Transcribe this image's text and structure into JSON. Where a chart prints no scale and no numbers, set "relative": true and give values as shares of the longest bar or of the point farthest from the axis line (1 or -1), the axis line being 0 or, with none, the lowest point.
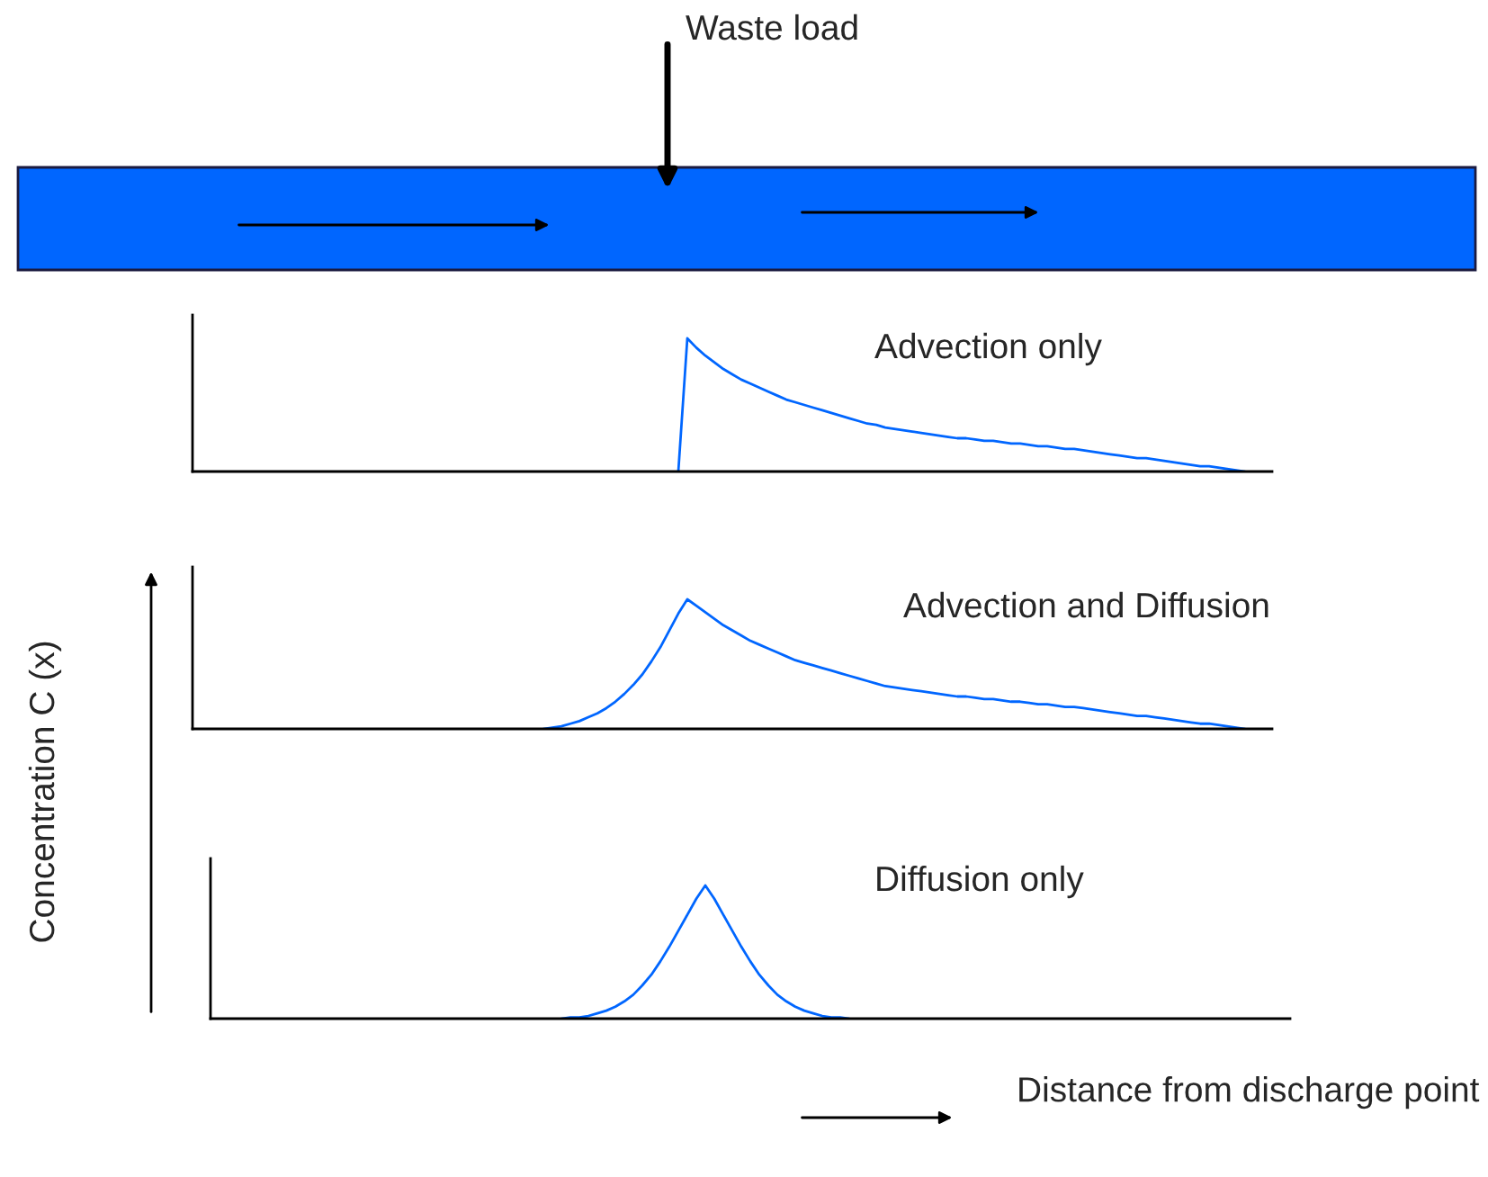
{
  "chart_data": [
    {
      "type": "line",
      "title": "Advection only",
      "relative": true,
      "annotations": [
        "Waste load"
      ],
      "categories": [
        null,
        null,
        null,
        null,
        null,
        null,
        null,
        null,
        null,
        null,
        null,
        null,
        null,
        null,
        null,
        null,
        null,
        null,
        null,
        null,
        null,
        null,
        null,
        null,
        null,
        null,
        null,
        null,
        null,
        null,
        null,
        null,
        null,
        null,
        null,
        null,
        null,
        null,
        null,
        null,
        null,
        null,
        null,
        null,
        null,
        null,
        null,
        null,
        null,
        null,
        null,
        null,
        null,
        null,
        null,
        null,
        null,
        null,
        null,
        null,
        null,
        null,
        null,
        null,
        null,
        null,
        null,
        null,
        null,
        null,
        null,
        null,
        null,
        null,
        null,
        null,
        null,
        null,
        null,
        null,
        null,
        null,
        null,
        null,
        null,
        null,
        null,
        null,
        null,
        null,
        null,
        null,
        null,
        null,
        null,
        null,
        null,
        null,
        null,
        null,
        null,
        null,
        null,
        null,
        null,
        null,
        null,
        null,
        null,
        null,
        null,
        null,
        null,
        null,
        null,
        null,
        null,
        null,
        null,
        null,
        null
      ],
      "series": [
        {
          "color": "#0066ff",
          "values": [
            null,
            null,
            null,
            null,
            null,
            null,
            null,
            null,
            null,
            null,
            null,
            null,
            null,
            null,
            null,
            null,
            null,
            null,
            null,
            null,
            null,
            null,
            null,
            null,
            null,
            null,
            null,
            null,
            null,
            null,
            null,
            null,
            null,
            null,
            null,
            null,
            null,
            null,
            null,
            null,
            null,
            null,
            null,
            null,
            null,
            null,
            null,
            null,
            null,
            null,
            null,
            null,
            null,
            null,
            0,
            1.0,
            0.93,
            0.87,
            0.82,
            0.77,
            0.73,
            0.69,
            0.66,
            0.63,
            0.6,
            0.57,
            0.54,
            0.52,
            0.5,
            0.48,
            0.46,
            0.44,
            0.42,
            0.4,
            0.38,
            0.36,
            0.35,
            0.33,
            0.32,
            0.31,
            0.3,
            0.29,
            0.28,
            0.27,
            0.26,
            0.25,
            0.25,
            0.24,
            0.23,
            0.23,
            0.22,
            0.21,
            0.21,
            0.2,
            0.19,
            0.19,
            0.18,
            0.17,
            0.17,
            0.16,
            0.15,
            0.14,
            0.13,
            0.12,
            0.11,
            0.1,
            0.1,
            0.09,
            0.08,
            0.07,
            0.06,
            0.05,
            0.04,
            0.04,
            0.03,
            0.02,
            0.01,
            0,
            null,
            null,
            null
          ]
        }
      ]
    },
    {
      "type": "line",
      "title": "Advection and Diffusion",
      "relative": true,
      "categories": [
        null,
        null,
        null,
        null,
        null,
        null,
        null,
        null,
        null,
        null,
        null,
        null,
        null,
        null,
        null,
        null,
        null,
        null,
        null,
        null,
        null,
        null,
        null,
        null,
        null,
        null,
        null,
        null,
        null,
        null,
        null,
        null,
        null,
        null,
        null,
        null,
        null,
        null,
        null,
        null,
        null,
        null,
        null,
        null,
        null,
        null,
        null,
        null,
        null,
        null,
        null,
        null,
        null,
        null,
        null,
        null,
        null,
        null,
        null,
        null,
        null,
        null,
        null,
        null,
        null,
        null,
        null,
        null,
        null,
        null,
        null,
        null,
        null,
        null,
        null,
        null,
        null,
        null,
        null,
        null,
        null,
        null,
        null,
        null,
        null,
        null,
        null,
        null,
        null,
        null,
        null,
        null,
        null,
        null,
        null,
        null,
        null,
        null,
        null,
        null,
        null,
        null,
        null,
        null,
        null,
        null,
        null,
        null,
        null,
        null,
        null,
        null,
        null,
        null,
        null,
        null,
        null,
        null,
        null,
        null,
        null
      ],
      "series": [
        {
          "color": "#0066ff",
          "values": [
            null,
            null,
            null,
            null,
            null,
            null,
            null,
            null,
            null,
            null,
            null,
            null,
            null,
            null,
            null,
            null,
            null,
            null,
            null,
            null,
            null,
            null,
            null,
            null,
            null,
            null,
            null,
            null,
            null,
            null,
            null,
            null,
            null,
            null,
            null,
            null,
            null,
            null,
            null,
            0,
            0.01,
            0.02,
            0.04,
            0.06,
            0.09,
            0.12,
            0.16,
            0.21,
            0.27,
            0.34,
            0.42,
            0.52,
            0.63,
            0.76,
            0.89,
            1.0,
            0.95,
            0.9,
            0.85,
            0.8,
            0.76,
            0.72,
            0.68,
            0.65,
            0.62,
            0.59,
            0.56,
            0.53,
            0.51,
            0.49,
            0.47,
            0.45,
            0.43,
            0.41,
            0.39,
            0.37,
            0.35,
            0.33,
            0.32,
            0.31,
            0.3,
            0.29,
            0.28,
            0.27,
            0.26,
            0.25,
            0.25,
            0.24,
            0.23,
            0.23,
            0.22,
            0.21,
            0.21,
            0.2,
            0.19,
            0.19,
            0.18,
            0.17,
            0.17,
            0.16,
            0.15,
            0.14,
            0.13,
            0.12,
            0.11,
            0.1,
            0.1,
            0.09,
            0.08,
            0.07,
            0.06,
            0.05,
            0.04,
            0.04,
            0.03,
            0.02,
            0.01,
            0,
            null,
            null,
            null
          ]
        }
      ]
    },
    {
      "type": "line",
      "title": "Diffusion only",
      "relative": true,
      "ylabel": "Concentration C (x)",
      "xlabel": "Distance from discharge point",
      "categories": [
        null,
        null,
        null,
        null,
        null,
        null,
        null,
        null,
        null,
        null,
        null,
        null,
        null,
        null,
        null,
        null,
        null,
        null,
        null,
        null,
        null,
        null,
        null,
        null,
        null,
        null,
        null,
        null,
        null,
        null,
        null,
        null,
        null,
        null,
        null,
        null,
        null,
        null,
        null,
        null,
        null,
        null,
        null,
        null,
        null,
        null,
        null,
        null,
        null,
        null,
        null,
        null,
        null,
        null,
        null,
        null,
        null,
        null,
        null,
        null,
        null,
        null,
        null,
        null,
        null,
        null,
        null,
        null,
        null,
        null,
        null,
        null,
        null,
        null,
        null,
        null,
        null,
        null,
        null,
        null,
        null,
        null,
        null,
        null,
        null,
        null,
        null,
        null,
        null,
        null,
        null,
        null,
        null,
        null,
        null,
        null,
        null,
        null,
        null,
        null,
        null,
        null,
        null,
        null,
        null,
        null,
        null,
        null,
        null,
        null,
        null,
        null,
        null,
        null,
        null,
        null,
        null,
        null,
        null,
        null,
        null
      ],
      "series": [
        {
          "color": "#0066ff",
          "values": [
            null,
            null,
            null,
            null,
            null,
            null,
            null,
            null,
            null,
            null,
            null,
            null,
            null,
            null,
            null,
            null,
            null,
            null,
            null,
            null,
            null,
            null,
            null,
            null,
            null,
            null,
            null,
            null,
            null,
            null,
            null,
            null,
            null,
            null,
            null,
            null,
            null,
            null,
            null,
            0,
            0.01,
            0.01,
            0.02,
            0.04,
            0.06,
            0.09,
            0.13,
            0.18,
            0.25,
            0.33,
            0.43,
            0.54,
            0.66,
            0.78,
            0.9,
            1.0,
            0.9,
            0.78,
            0.66,
            0.54,
            0.43,
            0.33,
            0.25,
            0.18,
            0.13,
            0.09,
            0.06,
            0.04,
            0.02,
            0.01,
            0.01,
            0,
            null,
            null,
            null,
            null,
            null,
            null,
            null,
            null,
            null,
            null,
            null,
            null,
            null,
            null,
            null,
            null,
            null,
            null,
            null,
            null,
            null,
            null,
            null,
            null,
            null,
            null,
            null,
            null,
            null,
            null,
            null,
            null,
            null,
            null,
            null,
            null,
            null,
            null,
            null,
            null,
            null,
            null,
            null,
            null,
            null,
            null,
            null,
            null,
            null
          ]
        }
      ]
    }
  ]
}
